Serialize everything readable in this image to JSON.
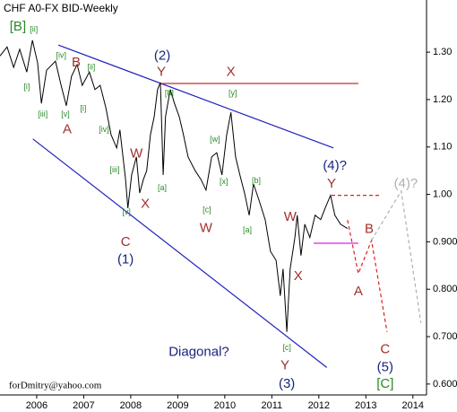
{
  "chart_data": {
    "type": "line",
    "title": "CHF A0-FX BID-Weekly",
    "footer": "forDmitry@yahoo.com",
    "xlim": [
      2005.22,
      2014.29
    ],
    "ylim": [
      0.577,
      1.41
    ],
    "xticks": [
      2006,
      2007,
      2008,
      2009,
      2010,
      2011,
      2012,
      2013,
      2014
    ],
    "yticks": [
      {
        "value": 1.3,
        "label": "1.30"
      },
      {
        "value": 1.2,
        "label": "1.20"
      },
      {
        "value": 1.1,
        "label": "1.10"
      },
      {
        "value": 1.0,
        "label": "1.00"
      },
      {
        "value": 0.9,
        "label": "0.900"
      },
      {
        "value": 0.8,
        "label": "0.800"
      },
      {
        "value": 0.7,
        "label": "0.700"
      },
      {
        "value": 0.6,
        "label": "0.600"
      }
    ],
    "series": [
      {
        "color": "#000000",
        "x": [
          2005.22,
          2005.37,
          2005.51,
          2005.64,
          2005.79,
          2005.91,
          2006.02,
          2006.1,
          2006.21,
          2006.4,
          2006.52,
          2006.63,
          2006.74,
          2006.86,
          2006.97,
          2007.12,
          2007.24,
          2007.35,
          2007.47,
          2007.58,
          2007.7,
          2007.77,
          2007.89,
          2007.94,
          2008.02,
          2008.12,
          2008.19,
          2008.27,
          2008.34,
          2008.42,
          2008.5,
          2008.57,
          2008.63,
          2008.69,
          2008.74,
          2008.84,
          2008.93,
          2009.03,
          2009.12,
          2009.22,
          2009.37,
          2009.49,
          2009.6,
          2009.72,
          2009.83,
          2009.94,
          2010.04,
          2010.13,
          2010.23,
          2010.32,
          2010.42,
          2010.52,
          2010.61,
          2010.74,
          2010.86,
          2010.97,
          2011.09,
          2011.18,
          2011.24,
          2011.32,
          2011.39,
          2011.49,
          2011.54,
          2011.62,
          2011.7,
          2011.81,
          2011.92,
          2012.04,
          2012.15,
          2012.25,
          2012.34,
          2012.46,
          2012.61
        ],
        "values": [
          1.292,
          1.311,
          1.268,
          1.306,
          1.258,
          1.325,
          1.277,
          1.192,
          1.262,
          1.281,
          1.23,
          1.187,
          1.249,
          1.274,
          1.23,
          1.258,
          1.221,
          1.23,
          1.183,
          1.126,
          1.098,
          1.136,
          1.032,
          0.971,
          1.041,
          1.079,
          1.003,
          1.032,
          1.05,
          1.126,
          1.164,
          1.221,
          1.236,
          1.041,
          1.164,
          1.221,
          1.192,
          1.164,
          1.126,
          1.079,
          1.05,
          1.032,
          1.009,
          1.079,
          1.088,
          1.041,
          1.126,
          1.173,
          1.079,
          1.041,
          1.003,
          0.956,
          1.022,
          0.984,
          0.946,
          0.88,
          0.861,
          0.786,
          0.843,
          0.71,
          0.843,
          0.909,
          0.956,
          0.871,
          0.937,
          0.909,
          0.956,
          0.947,
          0.975,
          0.998,
          0.956,
          0.937,
          0.928
        ]
      }
    ],
    "lines": [
      {
        "color": "#2020c0",
        "dash": false,
        "x": [
          2006.46,
          2012.31
        ],
        "y": [
          1.315,
          1.098
        ]
      },
      {
        "color": "#2020c0",
        "dash": false,
        "x": [
          2005.92,
          2012.17
        ],
        "y": [
          1.117,
          0.635
        ]
      },
      {
        "color": "#c03030",
        "dash": false,
        "x": [
          2008.61,
          2012.84
        ],
        "y": [
          1.234,
          1.234
        ]
      },
      {
        "color": "#e02020",
        "dash": true,
        "x": [
          2012.27,
          2013.31
        ],
        "y": [
          0.998,
          0.998
        ]
      },
      {
        "color": "#e020e0",
        "dash": false,
        "x": [
          2011.89,
          2012.84
        ],
        "y": [
          0.897,
          0.897
        ]
      },
      {
        "color": "#e02020",
        "dash": true,
        "x": [
          2012.61,
          2012.84,
          2013.12,
          2013.45
        ],
        "y": [
          0.946,
          0.833,
          0.903,
          0.71
        ]
      },
      {
        "color": "#b0b0b0",
        "dash": true,
        "x": [
          2013.12,
          2013.75,
          2014.17
        ],
        "y": [
          0.903,
          1.007,
          0.729
        ]
      }
    ],
    "annotations": [
      {
        "text": "[B]",
        "x": 2005.6,
        "y": 1.353,
        "color": "#2a8a2a"
      },
      {
        "text": "[ii]",
        "x": 2005.94,
        "y": 1.347,
        "color": "#2a8a2a"
      },
      {
        "text": "[iv]",
        "x": 2006.52,
        "y": 1.292,
        "color": "#2a8a2a"
      },
      {
        "text": "B",
        "x": 2006.84,
        "y": 1.277,
        "color": "#a0302a"
      },
      {
        "text": "[ii]",
        "x": 2007.16,
        "y": 1.268,
        "color": "#2a8a2a"
      },
      {
        "text": "[i]",
        "x": 2005.79,
        "y": 1.226,
        "color": "#2a8a2a"
      },
      {
        "text": "[iii]",
        "x": 2006.13,
        "y": 1.168,
        "color": "#2a8a2a"
      },
      {
        "text": "[v]",
        "x": 2006.61,
        "y": 1.168,
        "color": "#2a8a2a"
      },
      {
        "text": "[i]",
        "x": 2006.99,
        "y": 1.181,
        "color": "#2a8a2a"
      },
      {
        "text": "A",
        "x": 2006.65,
        "y": 1.136,
        "color": "#a0302a"
      },
      {
        "text": "[iv]",
        "x": 2007.43,
        "y": 1.136,
        "color": "#2a8a2a"
      },
      {
        "text": "W",
        "x": 2008.12,
        "y": 1.085,
        "color": "#a0302a"
      },
      {
        "text": "[iii]",
        "x": 2007.66,
        "y": 1.051,
        "color": "#2a8a2a"
      },
      {
        "text": "X",
        "x": 2008.31,
        "y": 0.979,
        "color": "#a0302a"
      },
      {
        "text": "[v]",
        "x": 2007.91,
        "y": 0.962,
        "color": "#2a8a2a"
      },
      {
        "text": "C",
        "x": 2007.89,
        "y": 0.899,
        "color": "#a0302a"
      },
      {
        "text": "(1)",
        "x": 2007.89,
        "y": 0.862,
        "color": "#1a237e"
      },
      {
        "text": "(2)",
        "x": 2008.67,
        "y": 1.292,
        "color": "#1a237e"
      },
      {
        "text": "Y",
        "x": 2008.65,
        "y": 1.258,
        "color": "#a0302a"
      },
      {
        "text": "X",
        "x": 2010.13,
        "y": 1.258,
        "color": "#a0302a"
      },
      {
        "text": "[b]",
        "x": 2008.82,
        "y": 1.213,
        "color": "#2a8a2a"
      },
      {
        "text": "[y]",
        "x": 2010.17,
        "y": 1.213,
        "color": "#2a8a2a"
      },
      {
        "text": "[w]",
        "x": 2009.79,
        "y": 1.115,
        "color": "#2a8a2a"
      },
      {
        "text": "[a]",
        "x": 2008.67,
        "y": 1.013,
        "color": "#2a8a2a"
      },
      {
        "text": "[x]",
        "x": 2009.98,
        "y": 1.026,
        "color": "#2a8a2a"
      },
      {
        "text": "[c]",
        "x": 2009.62,
        "y": 0.967,
        "color": "#2a8a2a"
      },
      {
        "text": "W",
        "x": 2009.6,
        "y": 0.928,
        "color": "#a0302a"
      },
      {
        "text": "[b]",
        "x": 2010.67,
        "y": 1.028,
        "color": "#2a8a2a"
      },
      {
        "text": "[a]",
        "x": 2010.48,
        "y": 0.924,
        "color": "#2a8a2a"
      },
      {
        "text": "(4)?",
        "x": 2012.34,
        "y": 1.06,
        "color": "#1a237e"
      },
      {
        "text": "Y",
        "x": 2012.27,
        "y": 1.022,
        "color": "#a0302a"
      },
      {
        "text": "W",
        "x": 2011.39,
        "y": 0.952,
        "color": "#a0302a"
      },
      {
        "text": "X",
        "x": 2011.56,
        "y": 0.827,
        "color": "#a0302a"
      },
      {
        "text": "B",
        "x": 2013.07,
        "y": 0.926,
        "color": "#a0302a"
      },
      {
        "text": "A",
        "x": 2012.84,
        "y": 0.795,
        "color": "#a0302a"
      },
      {
        "text": "(4)?",
        "x": 2013.85,
        "y": 1.022,
        "color": "#b0b0b0"
      },
      {
        "text": "Diagonal?",
        "x": 2009.45,
        "y": 0.667,
        "color": "#1a237e"
      },
      {
        "text": "[c]",
        "x": 2011.32,
        "y": 0.676,
        "color": "#2a8a2a"
      },
      {
        "text": "Y",
        "x": 2011.28,
        "y": 0.638,
        "color": "#a0302a"
      },
      {
        "text": "(3)",
        "x": 2011.32,
        "y": 0.6,
        "color": "#1a237e"
      },
      {
        "text": "C",
        "x": 2013.41,
        "y": 0.673,
        "color": "#a0302a"
      },
      {
        "text": "(5)",
        "x": 2013.41,
        "y": 0.635,
        "color": "#1a237e"
      },
      {
        "text": "[C]",
        "x": 2013.41,
        "y": 0.6,
        "color": "#2a8a2a"
      }
    ]
  }
}
